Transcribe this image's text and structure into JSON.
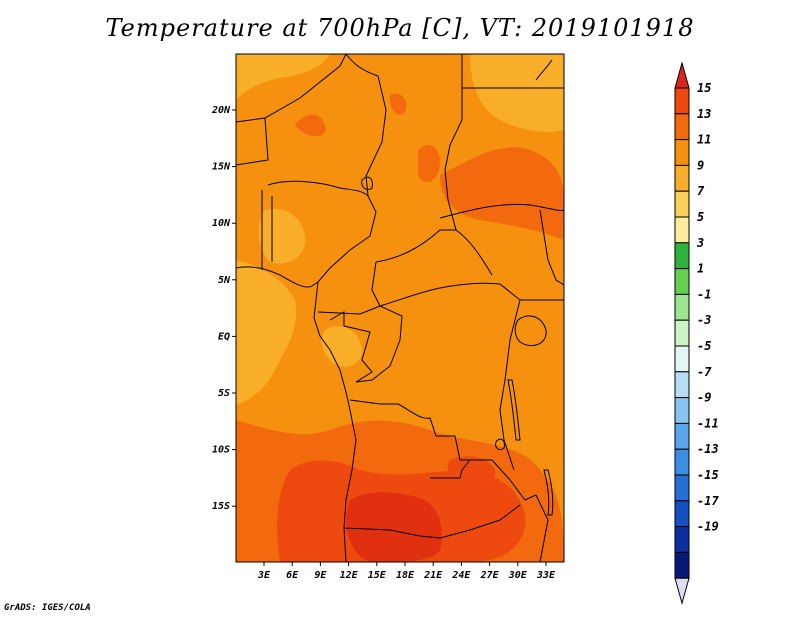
{
  "title": "Temperature at 700hPa [C], VT: 2019101918",
  "credit": "GrADS: IGES/COLA",
  "map": {
    "lat_labels": [
      "20N",
      "15N",
      "10N",
      "5N",
      "EQ",
      "5S",
      "10S",
      "15S"
    ],
    "lon_labels": [
      "3E",
      "6E",
      "9E",
      "12E",
      "15E",
      "18E",
      "21E",
      "24E",
      "27E",
      "30E",
      "33E"
    ],
    "units": "C"
  },
  "colorbar": {
    "labels": [
      "15",
      "13",
      "11",
      "9",
      "7",
      "5",
      "3",
      "1",
      "-1",
      "-3",
      "-5",
      "-7",
      "-9",
      "-11",
      "-13",
      "-15",
      "-17",
      "-19"
    ],
    "colors": [
      "#e8341c",
      "#ee4a10",
      "#f26a0d",
      "#f6900f",
      "#f9ae2a",
      "#fbcf5c",
      "#fcec9c",
      "#2eb43c",
      "#63d04e",
      "#9ce690",
      "#ccf2c6",
      "#e2f6f6",
      "#b6ddf6",
      "#86c4f2",
      "#5aa6ec",
      "#3c8ee2",
      "#2470d6",
      "#1450c2",
      "#0a30a4",
      "#061878"
    ],
    "top_arrow_color": "#d8281c",
    "bottom_arrow_color": "#dcdcf4"
  }
}
